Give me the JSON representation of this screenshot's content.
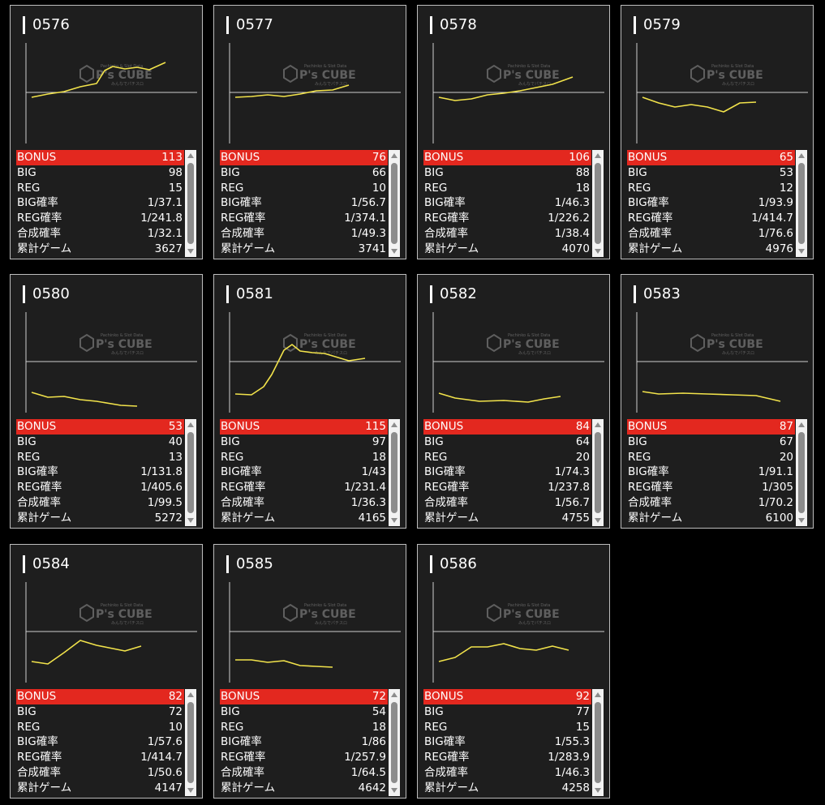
{
  "labels": {
    "bonus": "BONUS",
    "big": "BIG",
    "reg": "REG",
    "big_rate": "BIG確率",
    "reg_rate": "REG確率",
    "total_rate": "合成確率",
    "games": "累計ゲーム"
  },
  "watermark": {
    "brand": "P's CUBE",
    "tagline": "Pachinko & Slot Data",
    "sub": "みんなでパチスロ"
  },
  "colors": {
    "bonus_bg": "#e3281f",
    "line": "#f2e34b",
    "card_bg": "#1e1e1e"
  },
  "machines": [
    {
      "id": "0576",
      "bonus": "113",
      "big": "98",
      "reg": "15",
      "big_rate": "1/37.1",
      "reg_rate": "1/241.8",
      "total_rate": "1/32.1",
      "games": "3627"
    },
    {
      "id": "0577",
      "bonus": "76",
      "big": "66",
      "reg": "10",
      "big_rate": "1/56.7",
      "reg_rate": "1/374.1",
      "total_rate": "1/49.3",
      "games": "3741"
    },
    {
      "id": "0578",
      "bonus": "106",
      "big": "88",
      "reg": "18",
      "big_rate": "1/46.3",
      "reg_rate": "1/226.2",
      "total_rate": "1/38.4",
      "games": "4070"
    },
    {
      "id": "0579",
      "bonus": "65",
      "big": "53",
      "reg": "12",
      "big_rate": "1/93.9",
      "reg_rate": "1/414.7",
      "total_rate": "1/76.6",
      "games": "4976"
    },
    {
      "id": "0580",
      "bonus": "53",
      "big": "40",
      "reg": "13",
      "big_rate": "1/131.8",
      "reg_rate": "1/405.6",
      "total_rate": "1/99.5",
      "games": "5272"
    },
    {
      "id": "0581",
      "bonus": "115",
      "big": "97",
      "reg": "18",
      "big_rate": "1/43",
      "reg_rate": "1/231.4",
      "total_rate": "1/36.3",
      "games": "4165"
    },
    {
      "id": "0582",
      "bonus": "84",
      "big": "64",
      "reg": "20",
      "big_rate": "1/74.3",
      "reg_rate": "1/237.8",
      "total_rate": "1/56.7",
      "games": "4755"
    },
    {
      "id": "0583",
      "bonus": "87",
      "big": "67",
      "reg": "20",
      "big_rate": "1/91.1",
      "reg_rate": "1/305",
      "total_rate": "1/70.2",
      "games": "6100"
    },
    {
      "id": "0584",
      "bonus": "82",
      "big": "72",
      "reg": "10",
      "big_rate": "1/57.6",
      "reg_rate": "1/414.7",
      "total_rate": "1/50.6",
      "games": "4147"
    },
    {
      "id": "0585",
      "bonus": "72",
      "big": "54",
      "reg": "18",
      "big_rate": "1/86",
      "reg_rate": "1/257.9",
      "total_rate": "1/64.5",
      "games": "4642"
    },
    {
      "id": "0586",
      "bonus": "92",
      "big": "77",
      "reg": "15",
      "big_rate": "1/55.3",
      "reg_rate": "1/283.9",
      "total_rate": "1/46.3",
      "games": "4258"
    }
  ]
}
